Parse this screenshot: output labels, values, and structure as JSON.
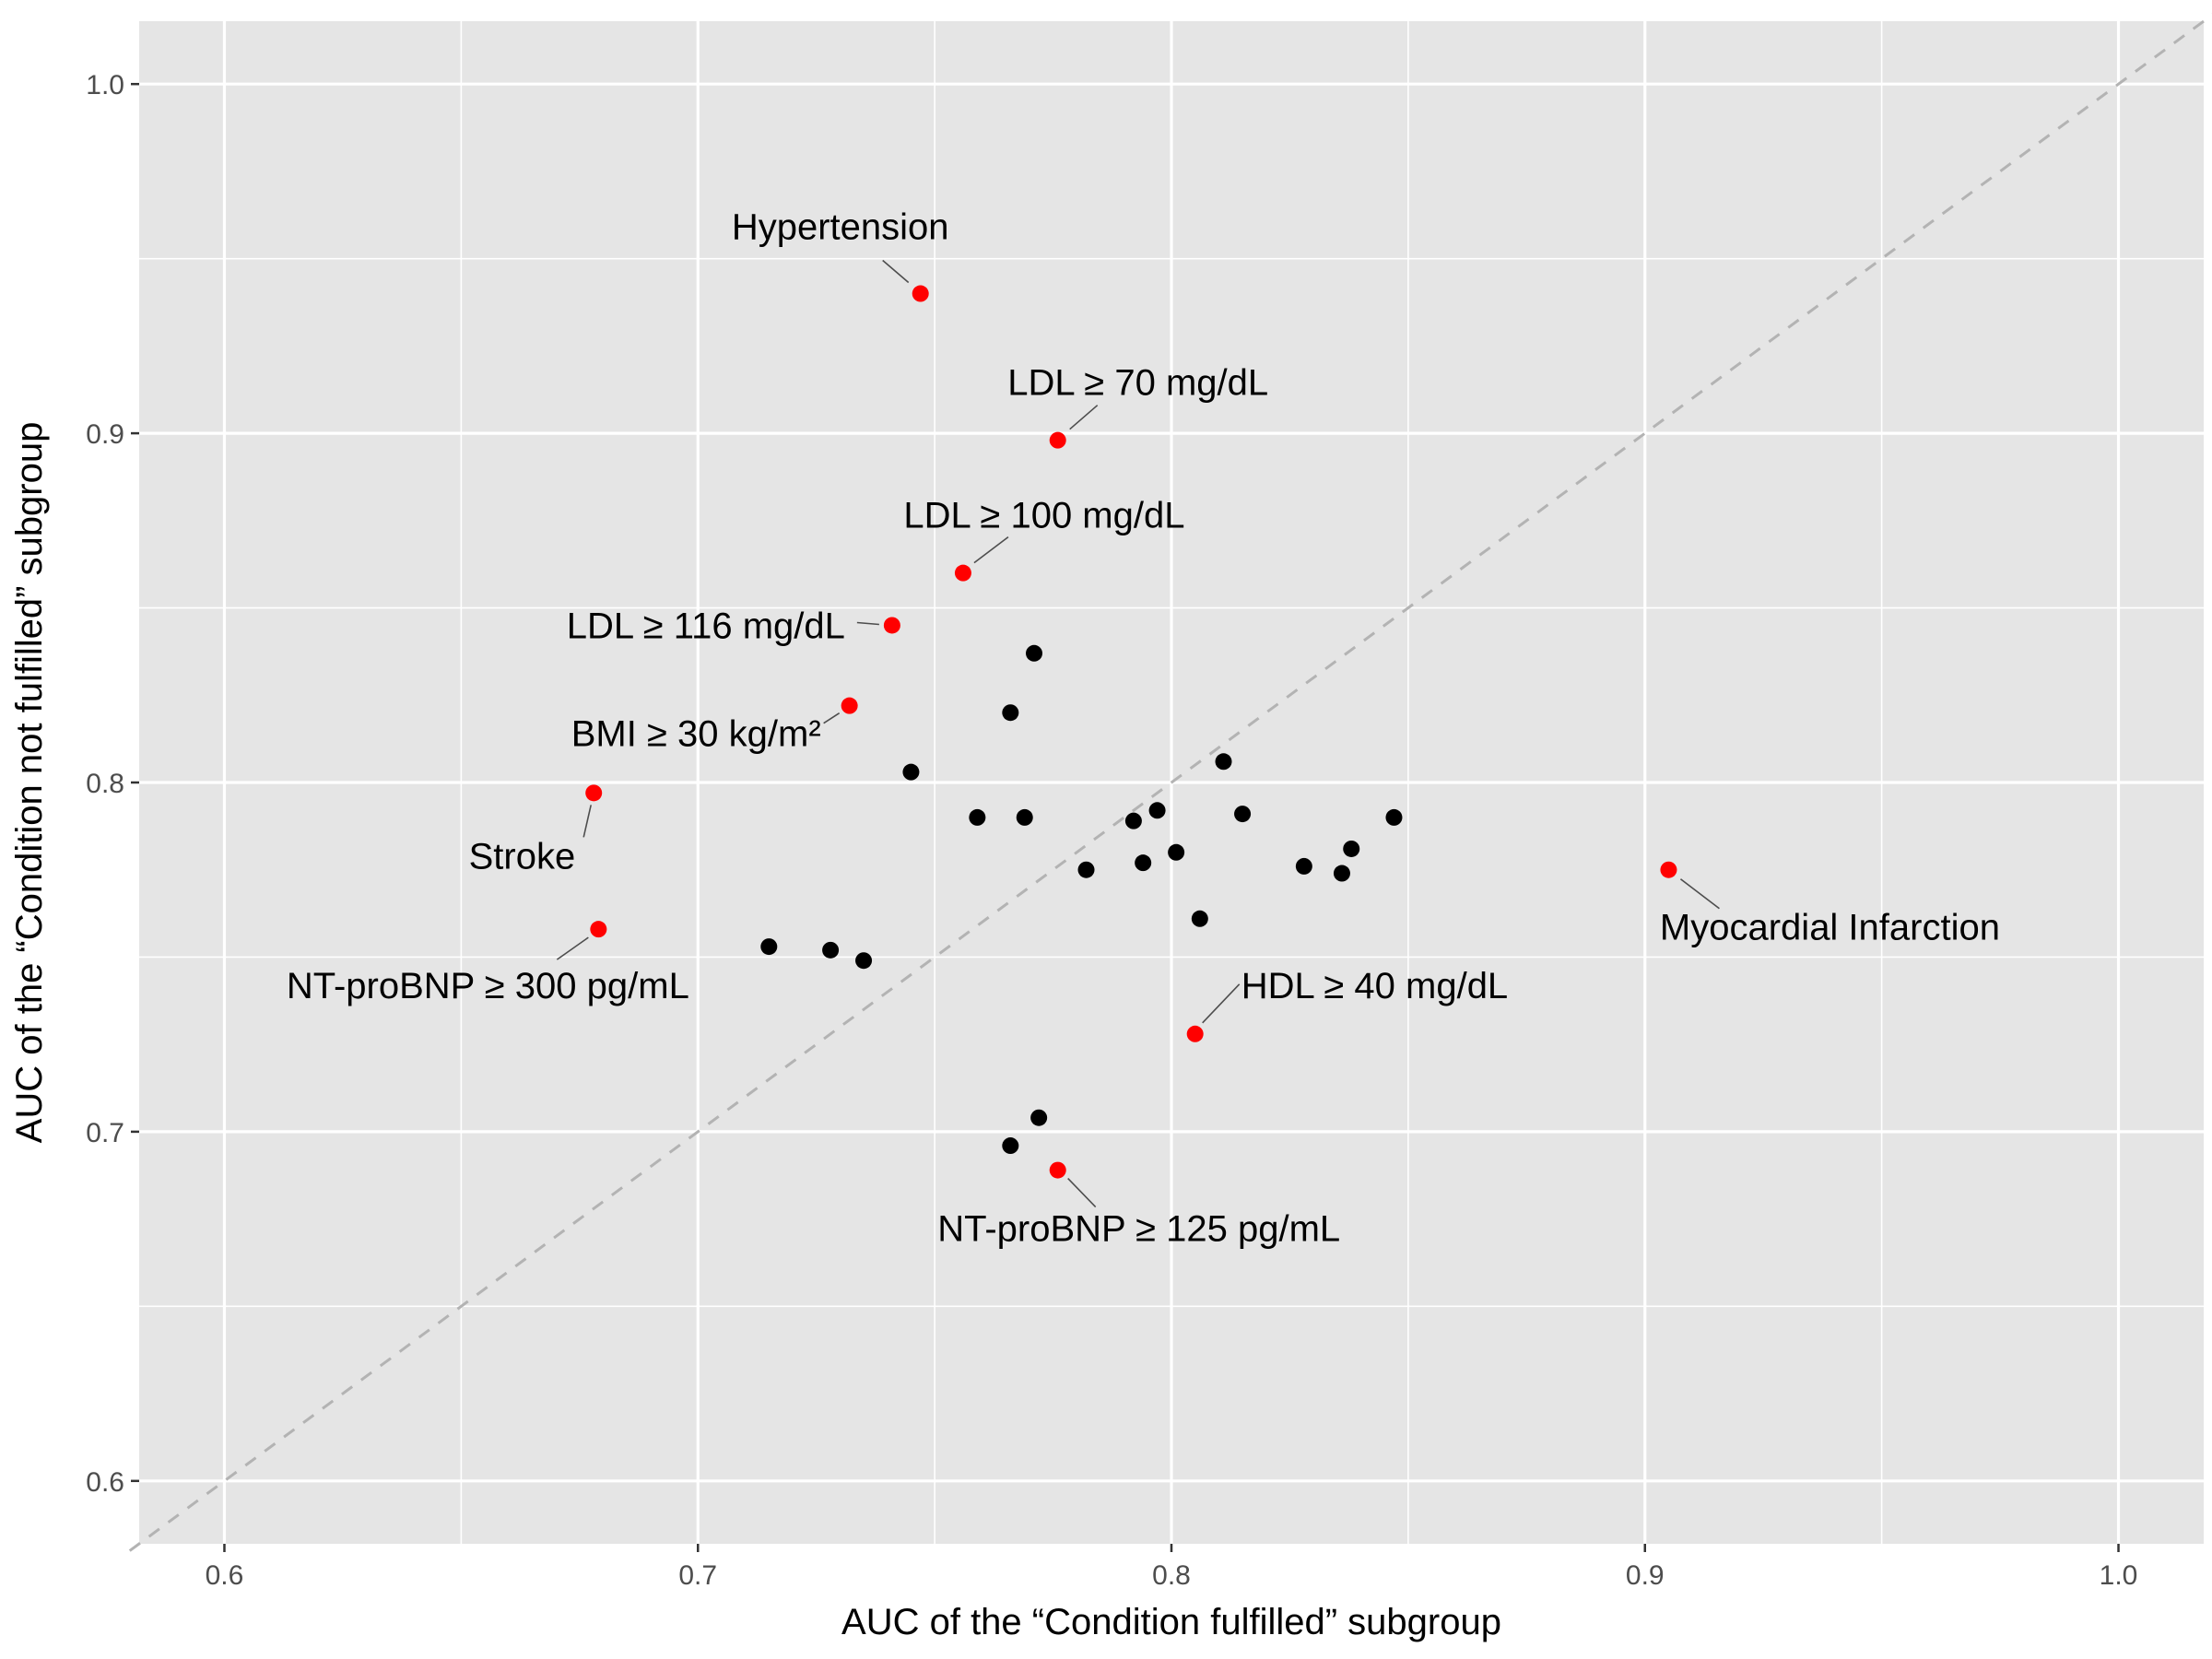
{
  "chart_data": {
    "type": "scatter",
    "title": "",
    "xlabel": "AUC of the “Condition fulfilled” subgroup",
    "ylabel": "AUC of the “Condition not fulfilled” subgroup",
    "xlim": [
      0.582,
      1.018
    ],
    "ylim": [
      0.582,
      1.018
    ],
    "xticks": [
      "0.6",
      "0.7",
      "0.8",
      "0.9",
      "1.0"
    ],
    "yticks": [
      "0.6",
      "0.7",
      "0.8",
      "0.9",
      "1.0"
    ],
    "grid": true,
    "reference_line": {
      "from": [
        0.58,
        0.58
      ],
      "to": [
        1.02,
        1.02
      ],
      "style": "dashed",
      "color": "#b3b3b3"
    },
    "colors": {
      "panel": "#e5e5e5",
      "grid": "#ffffff",
      "highlight": "#ff0000",
      "default": "#000000"
    },
    "highlighted": [
      {
        "label": "Hypertension",
        "x": 0.747,
        "y": 0.94
      },
      {
        "label": "LDL ≥ 70 mg/dL",
        "x": 0.776,
        "y": 0.898
      },
      {
        "label": "LDL ≥ 100 mg/dL",
        "x": 0.756,
        "y": 0.86
      },
      {
        "label": "LDL ≥ 116 mg/dL",
        "x": 0.741,
        "y": 0.845
      },
      {
        "label": "BMI ≥ 30 kg/m²",
        "x": 0.732,
        "y": 0.822
      },
      {
        "label": "Stroke",
        "x": 0.678,
        "y": 0.797
      },
      {
        "label": "NT-proBNP ≥ 300 pg/mL",
        "x": 0.679,
        "y": 0.758
      },
      {
        "label": "Myocardial Infarction",
        "x": 0.905,
        "y": 0.775
      },
      {
        "label": "HDL ≥ 40 mg/dL",
        "x": 0.805,
        "y": 0.728
      },
      {
        "label": "NT-proBNP ≥ 125 pg/mL",
        "x": 0.776,
        "y": 0.689
      }
    ],
    "points": [
      {
        "x": 0.771,
        "y": 0.837
      },
      {
        "x": 0.766,
        "y": 0.82
      },
      {
        "x": 0.745,
        "y": 0.803
      },
      {
        "x": 0.811,
        "y": 0.806
      },
      {
        "x": 0.759,
        "y": 0.79
      },
      {
        "x": 0.769,
        "y": 0.79
      },
      {
        "x": 0.792,
        "y": 0.789
      },
      {
        "x": 0.797,
        "y": 0.792
      },
      {
        "x": 0.815,
        "y": 0.791
      },
      {
        "x": 0.847,
        "y": 0.79
      },
      {
        "x": 0.801,
        "y": 0.78
      },
      {
        "x": 0.838,
        "y": 0.781
      },
      {
        "x": 0.782,
        "y": 0.775
      },
      {
        "x": 0.794,
        "y": 0.777
      },
      {
        "x": 0.828,
        "y": 0.776
      },
      {
        "x": 0.836,
        "y": 0.774
      },
      {
        "x": 0.806,
        "y": 0.761
      },
      {
        "x": 0.715,
        "y": 0.753
      },
      {
        "x": 0.728,
        "y": 0.752
      },
      {
        "x": 0.735,
        "y": 0.749
      },
      {
        "x": 0.772,
        "y": 0.704
      },
      {
        "x": 0.766,
        "y": 0.696
      }
    ]
  }
}
